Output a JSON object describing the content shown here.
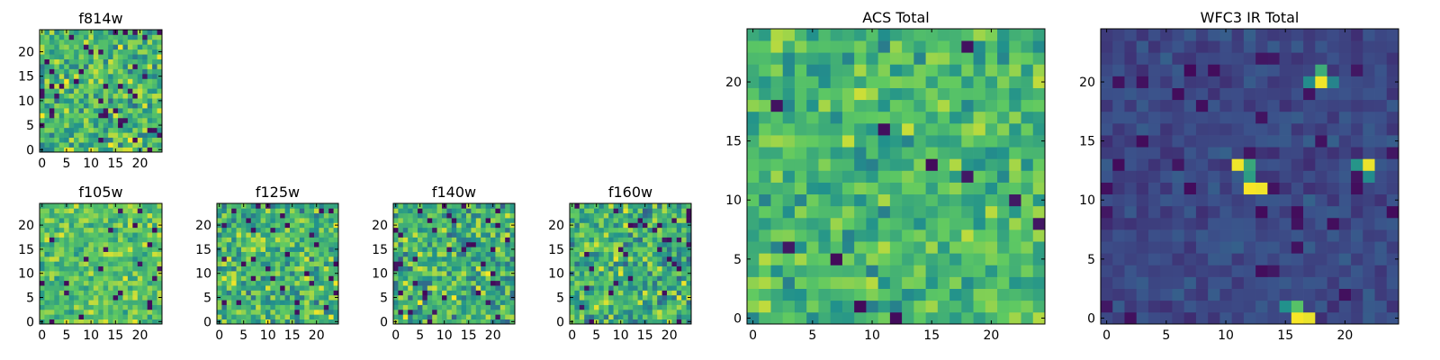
{
  "figure": {
    "colormap": "viridis",
    "colormap_stops": [
      "#440154",
      "#3b528b",
      "#21918c",
      "#5ec962",
      "#fde725"
    ],
    "frame_color": "#000000"
  },
  "chart_data": [
    {
      "type": "heatmap",
      "id": "f814w",
      "title": "f814w",
      "grid_size": [
        25,
        25
      ],
      "xticks": [
        "0",
        "5",
        "10",
        "15",
        "20"
      ],
      "yticks": [
        "0",
        "5",
        "10",
        "15",
        "20"
      ],
      "value_distribution": "noisy green-yellow field with scattered dark purple pixels",
      "value_range": [
        0,
        1
      ],
      "mean_level": 0.68,
      "noise": 0.22,
      "dark_pixel_fraction": 0.06,
      "bright_spots": []
    },
    {
      "type": "heatmap",
      "id": "f105w",
      "title": "f105w",
      "grid_size": [
        25,
        25
      ],
      "xticks": [
        "0",
        "5",
        "10",
        "15",
        "20"
      ],
      "yticks": [
        "0",
        "5",
        "10",
        "15",
        "20"
      ],
      "value_distribution": "mostly yellow-green with a few dark blue pixels",
      "value_range": [
        0,
        1
      ],
      "mean_level": 0.72,
      "noise": 0.17,
      "dark_pixel_fraction": 0.04,
      "bright_spots": []
    },
    {
      "type": "heatmap",
      "id": "f125w",
      "title": "f125w",
      "grid_size": [
        25,
        25
      ],
      "xticks": [
        "0",
        "5",
        "10",
        "15",
        "20"
      ],
      "yticks": [
        "0",
        "5",
        "10",
        "15",
        "20"
      ],
      "value_distribution": "mixed yellow and teal with scattered dark pixels",
      "value_range": [
        0,
        1
      ],
      "mean_level": 0.66,
      "noise": 0.22,
      "dark_pixel_fraction": 0.05,
      "bright_spots": []
    },
    {
      "type": "heatmap",
      "id": "f140w",
      "title": "f140w",
      "grid_size": [
        25,
        25
      ],
      "xticks": [
        "0",
        "5",
        "10",
        "15",
        "20"
      ],
      "yticks": [
        "0",
        "5",
        "10",
        "15",
        "20"
      ],
      "value_distribution": "mixed yellow and teal with scattered dark pixels",
      "value_range": [
        0,
        1
      ],
      "mean_level": 0.64,
      "noise": 0.24,
      "dark_pixel_fraction": 0.05,
      "bright_spots": []
    },
    {
      "type": "heatmap",
      "id": "f160w",
      "title": "f160w",
      "grid_size": [
        25,
        25
      ],
      "xticks": [
        "0",
        "5",
        "10",
        "15",
        "20"
      ],
      "yticks": [
        "0",
        "5",
        "10",
        "15",
        "20"
      ],
      "value_distribution": "mixed yellow and teal with scattered dark pixels",
      "value_range": [
        0,
        1
      ],
      "mean_level": 0.65,
      "noise": 0.23,
      "dark_pixel_fraction": 0.05,
      "bright_spots": []
    },
    {
      "type": "heatmap",
      "id": "acs_total",
      "title": "ACS Total",
      "grid_size": [
        25,
        25
      ],
      "xticks": [
        "0",
        "5",
        "10",
        "15",
        "20"
      ],
      "yticks": [
        "0",
        "5",
        "10",
        "15",
        "20"
      ],
      "value_distribution": "green field with yellow patches and a few dark purple pixels",
      "value_range": [
        0,
        1
      ],
      "mean_level": 0.67,
      "noise": 0.17,
      "dark_pixel_fraction": 0.025,
      "bright_spots": []
    },
    {
      "type": "heatmap",
      "id": "wfc3_ir_total",
      "title": "WFC3 IR Total",
      "grid_size": [
        25,
        25
      ],
      "xticks": [
        "0",
        "5",
        "10",
        "15",
        "20"
      ],
      "yticks": [
        "0",
        "5",
        "10",
        "15",
        "20"
      ],
      "value_distribution": "dark blue field with a few bright yellow-green sources",
      "value_range": [
        0,
        1
      ],
      "mean_level": 0.22,
      "noise": 0.06,
      "dark_pixel_fraction": 0.05,
      "bright_spots": [
        {
          "x": 18,
          "y": 20,
          "value": 0.98
        },
        {
          "x": 18,
          "y": 21,
          "value": 0.62
        },
        {
          "x": 17,
          "y": 20,
          "value": 0.48
        },
        {
          "x": 19,
          "y": 20,
          "value": 0.45
        },
        {
          "x": 11,
          "y": 13,
          "value": 0.98
        },
        {
          "x": 12,
          "y": 13,
          "value": 0.6
        },
        {
          "x": 12,
          "y": 11,
          "value": 0.99
        },
        {
          "x": 13,
          "y": 11,
          "value": 0.98
        },
        {
          "x": 12,
          "y": 12,
          "value": 0.55
        },
        {
          "x": 22,
          "y": 13,
          "value": 0.97
        },
        {
          "x": 21,
          "y": 13,
          "value": 0.52
        },
        {
          "x": 22,
          "y": 12,
          "value": 0.48
        },
        {
          "x": 16,
          "y": 0,
          "value": 0.99
        },
        {
          "x": 17,
          "y": 0,
          "value": 0.97
        },
        {
          "x": 16,
          "y": 1,
          "value": 0.72
        },
        {
          "x": 15,
          "y": 1,
          "value": 0.5
        }
      ]
    }
  ]
}
